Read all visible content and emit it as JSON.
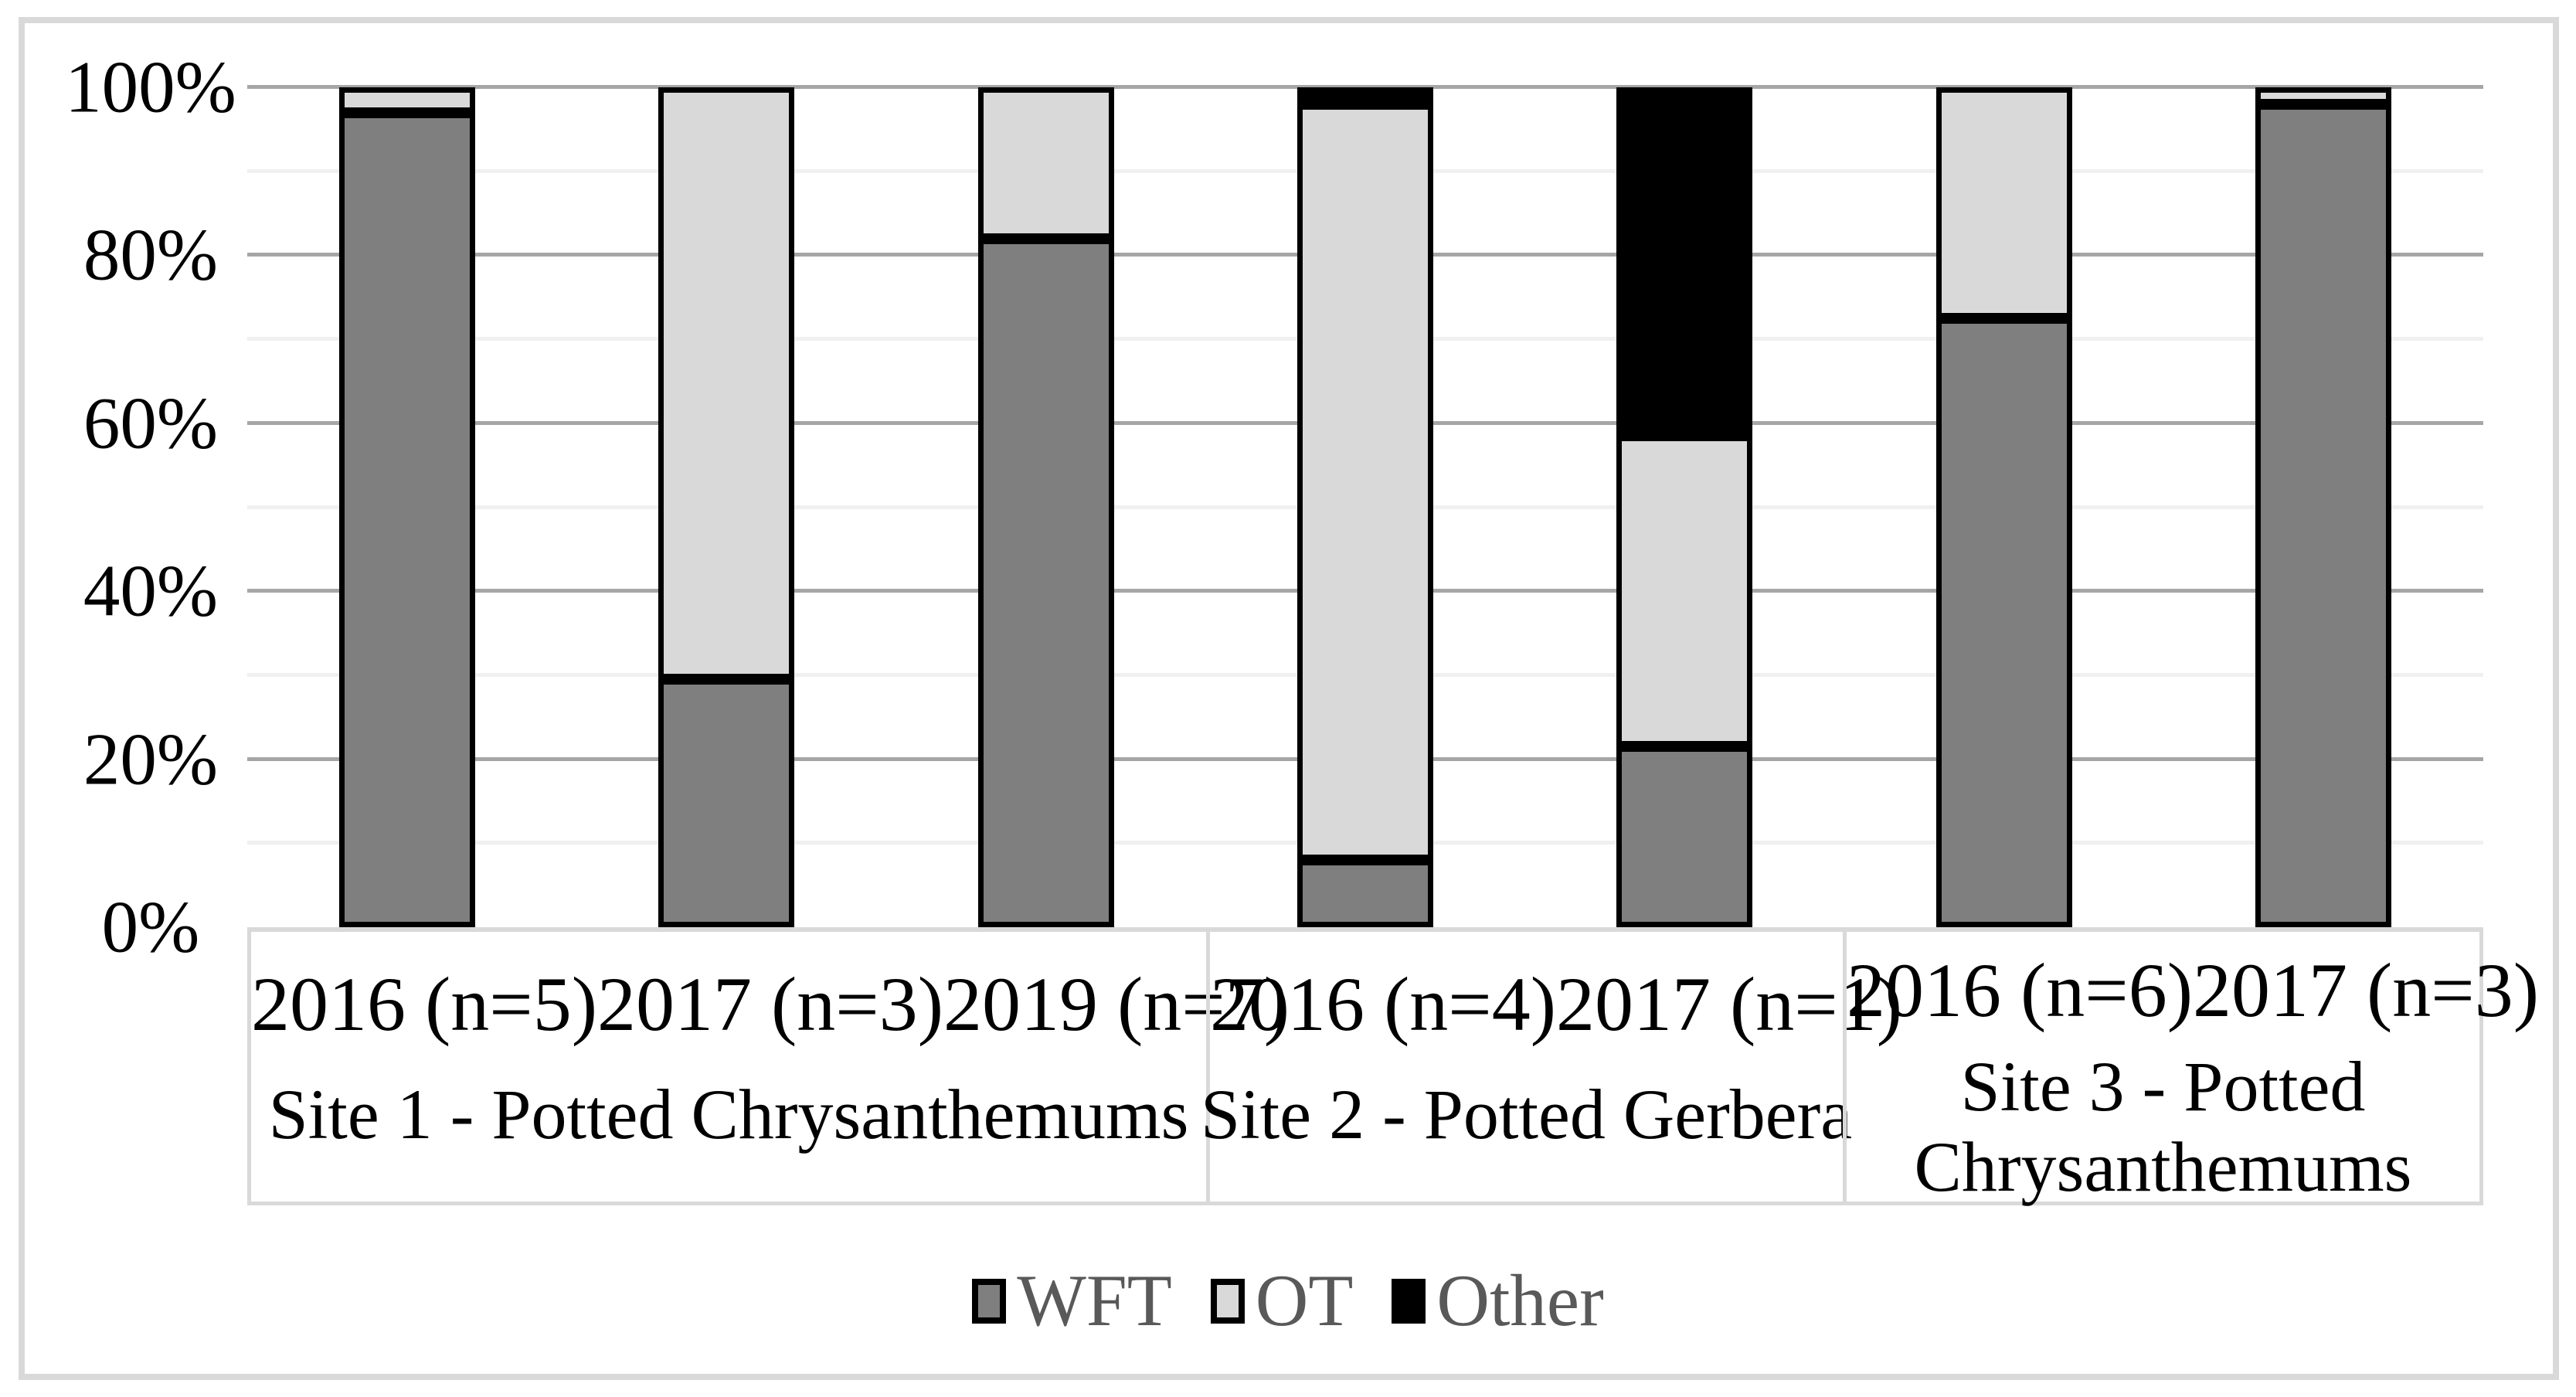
{
  "figure": {
    "background_color": "#ffffff",
    "border_color": "#d9d9d9"
  },
  "chart_data": {
    "type": "bar",
    "variant": "100-percent-stacked",
    "title": "",
    "xlabel": "",
    "ylabel": "",
    "ylim": [
      0,
      100
    ],
    "grid": {
      "major_step": 20,
      "minor_step": 10,
      "major_color": "#a6a6a6",
      "minor_color": "#f0f0f0",
      "axis_color": "#d9d9d9"
    },
    "bar_border_color": "#000000",
    "y_axis": {
      "ticks": [
        "0%",
        "20%",
        "40%",
        "60%",
        "80%",
        "100%"
      ]
    },
    "categories": [
      "2016 (n=5)",
      "2017 (n=3)",
      "2019 (n=7)",
      "2016 (n=4)",
      "2017 (n=1)",
      "2016 (n=6)",
      "2017 (n=3)"
    ],
    "groups": [
      {
        "lines": [
          "Site 1 - Potted Chrysanthemums"
        ],
        "span": 3
      },
      {
        "lines": [
          "Site 2 - Potted Gerbera"
        ],
        "span": 2
      },
      {
        "lines": [
          "Site 3 - Potted",
          "Chrysanthemums"
        ],
        "span": 2
      }
    ],
    "series": [
      {
        "name": "WFT",
        "color": "#7f7f7f",
        "values": [
          97,
          29.5,
          82,
          8,
          21.5,
          72.5,
          98
        ]
      },
      {
        "name": "OT",
        "color": "#d9d9d9",
        "values": [
          3,
          70.5,
          18,
          90,
          37,
          27.5,
          2
        ]
      },
      {
        "name": "Other",
        "color": "#000000",
        "values": [
          0,
          0,
          0,
          2,
          41.5,
          0,
          0
        ]
      }
    ],
    "legend": {
      "position": "bottom",
      "text_color": "#595959",
      "items": [
        {
          "label": "WFT",
          "color": "#7f7f7f"
        },
        {
          "label": "OT",
          "color": "#d9d9d9"
        },
        {
          "label": "Other",
          "color": "#000000"
        }
      ]
    }
  }
}
